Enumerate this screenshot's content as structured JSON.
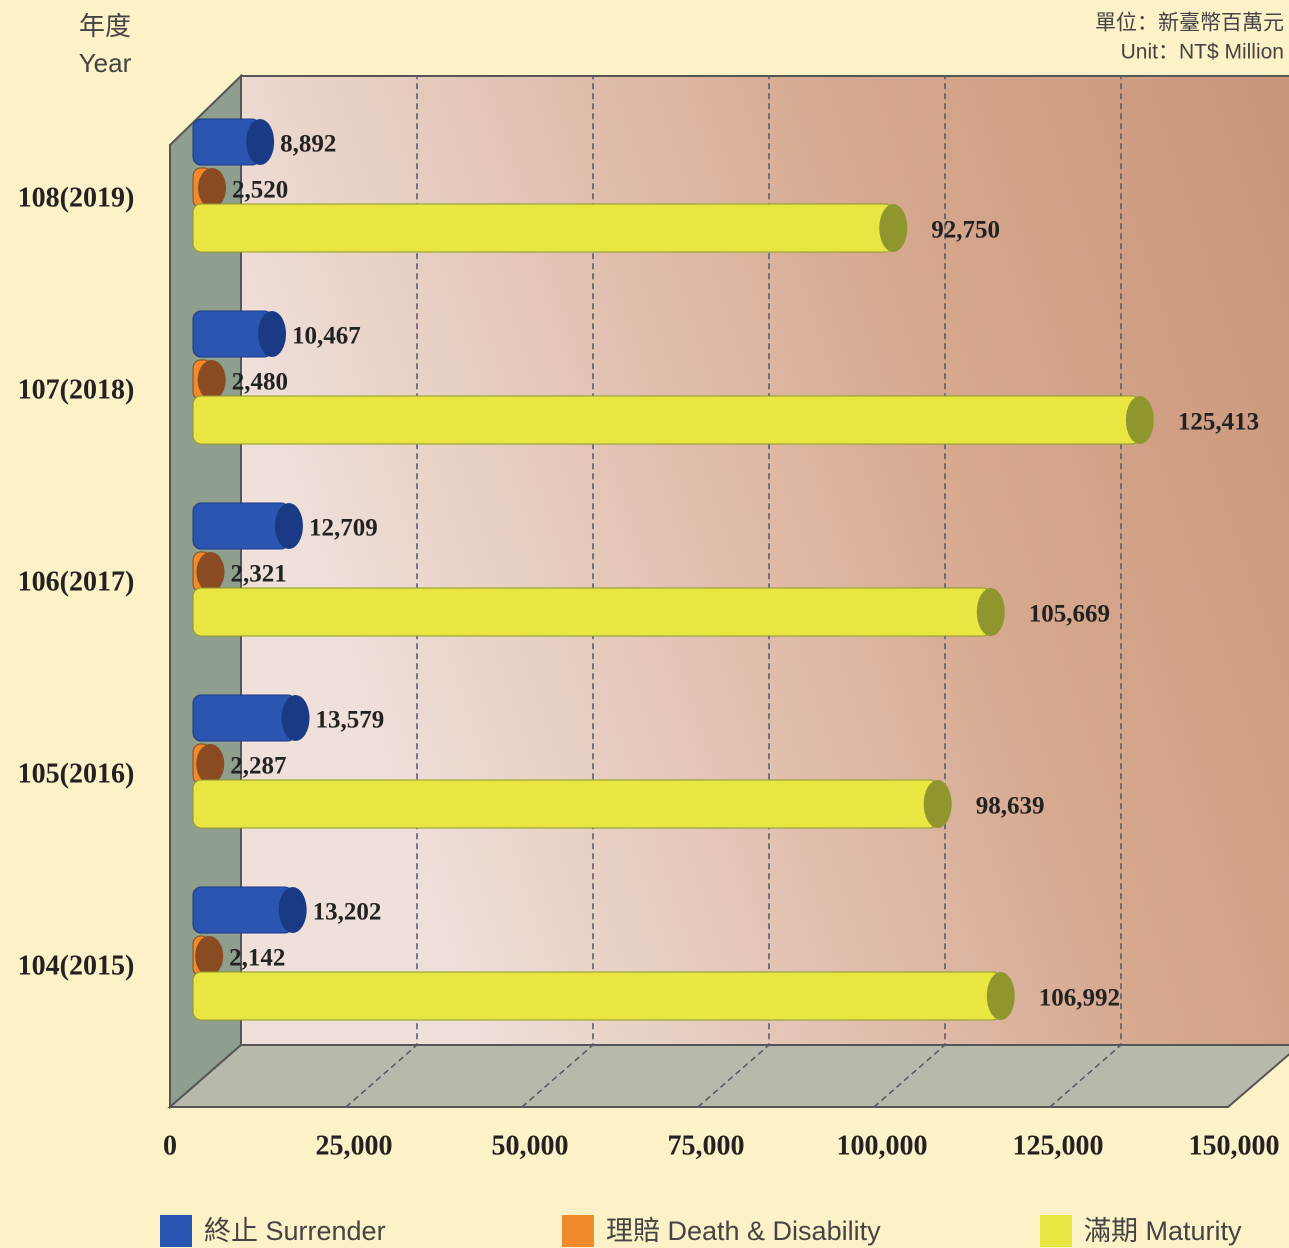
{
  "chart_data": {
    "type": "bar3d-horizontal",
    "y_axis_label": [
      "年度",
      "Year"
    ],
    "unit_label": [
      "單位：新臺幣百萬元",
      "Unit：NT$ Million"
    ],
    "categories": [
      "108(2019)",
      "107(2018)",
      "106(2017)",
      "105(2016)",
      "104(2015)"
    ],
    "series": [
      {
        "name": "終止 Surrender",
        "color": "#2a55b0",
        "values": [
          8892,
          10467,
          12709,
          13579,
          13202
        ],
        "value_labels": [
          "8,892",
          "10,467",
          "12,709",
          "13,579",
          "13,202"
        ]
      },
      {
        "name": "理賠 Death & Disability",
        "color": "#f08a2a",
        "values": [
          2520,
          2480,
          2321,
          2287,
          2142
        ],
        "value_labels": [
          "2,520",
          "2,480",
          "2,321",
          "2,287",
          "2,142"
        ]
      },
      {
        "name": "滿期 Maturity",
        "color": "#e8e640",
        "values": [
          92750,
          125413,
          105669,
          98639,
          106992
        ],
        "value_labels": [
          "92,750",
          "125,413",
          "105,669",
          "98,639",
          "106,992"
        ]
      }
    ],
    "xlim": [
      0,
      150000
    ],
    "xticks": [
      0,
      {
        "value": 25000,
        "label": "25,000"
      },
      {
        "value": 50000,
        "label": "50,000"
      },
      {
        "value": 75000,
        "label": "75,000"
      },
      {
        "value": 100000,
        "label": "100,000"
      },
      {
        "value": 125000,
        "label": "125,000"
      },
      {
        "value": 150000,
        "label": "150,000"
      }
    ],
    "grid": true
  }
}
